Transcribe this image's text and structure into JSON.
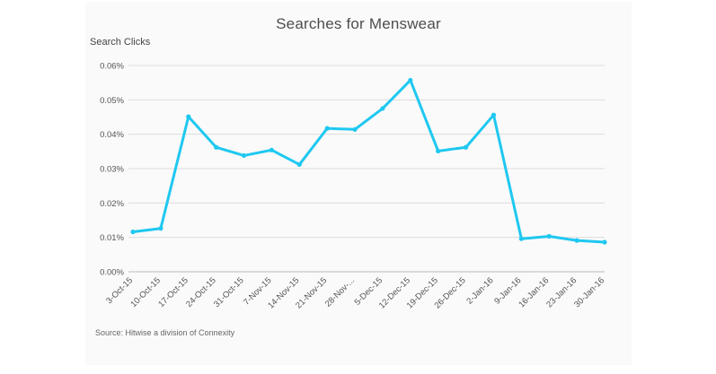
{
  "chart_data": {
    "type": "line",
    "title": "Searches for Menswear",
    "ylabel": "Search Clicks",
    "xlabel": "",
    "ylim": [
      0,
      0.06
    ],
    "yticks": [
      "0.00%",
      "0.01%",
      "0.02%",
      "0.03%",
      "0.04%",
      "0.05%",
      "0.06%"
    ],
    "grid": true,
    "legend": "none",
    "categories": [
      "3-Oct-15",
      "10-Oct-15",
      "17-Oct-15",
      "24-Oct-15",
      "31-Oct-15",
      "7-Nov-15",
      "14-Nov-15",
      "21-Nov-15",
      "28-Nov-...",
      "5-Dec-15",
      "12-Dec-15",
      "19-Dec-15",
      "26-Dec-15",
      "2-Jan-16",
      "9-Jan-16",
      "16-Jan-16",
      "23-Jan-16",
      "30-Jan-16"
    ],
    "series": [
      {
        "values": [
          0.0116,
          0.0126,
          0.0451,
          0.0362,
          0.0338,
          0.0354,
          0.0312,
          0.0417,
          0.0414,
          0.0475,
          0.0557,
          0.0351,
          0.0362,
          0.0456,
          0.0096,
          0.0103,
          0.0091,
          0.0086
        ],
        "color": "#1ec8f0"
      }
    ],
    "source": "Source: Hitwise a division of Connexity"
  }
}
